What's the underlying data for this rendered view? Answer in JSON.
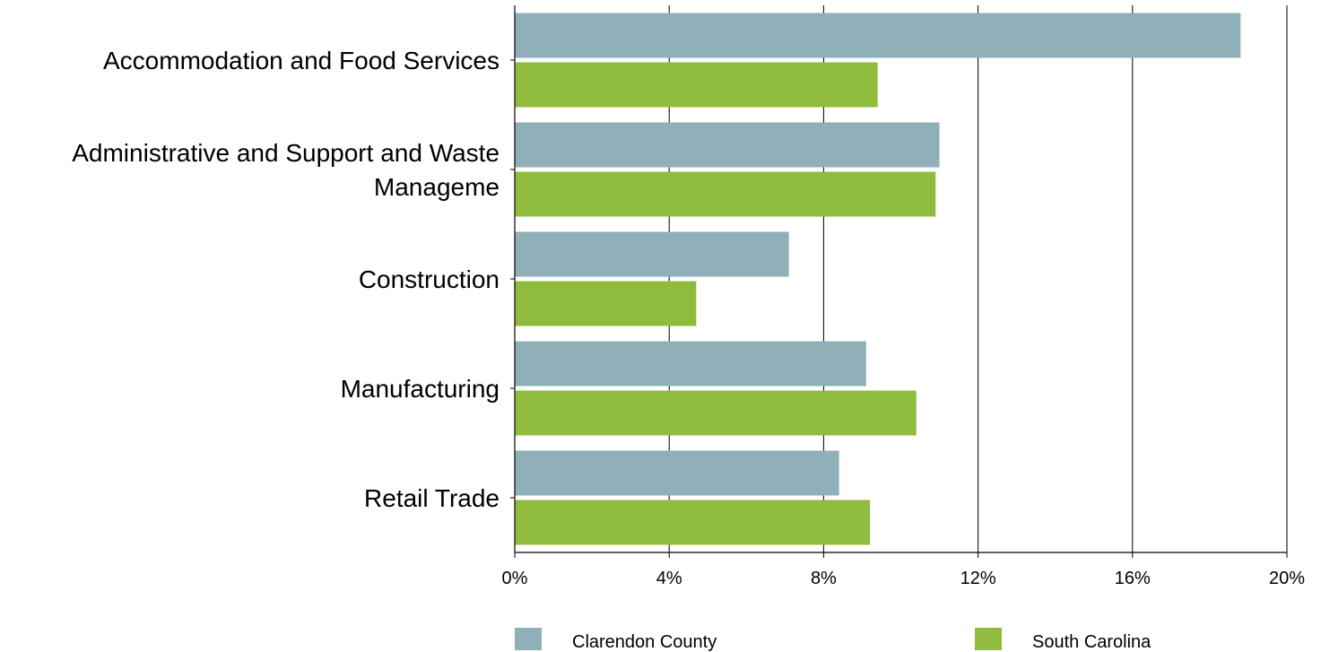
{
  "chart_data": {
    "type": "bar",
    "orientation": "horizontal",
    "categories": [
      [
        "Accommodation and Food Services"
      ],
      [
        "Administrative and Support and Waste",
        "Manageme"
      ],
      [
        "Construction"
      ],
      [
        "Manufacturing"
      ],
      [
        "Retail Trade"
      ]
    ],
    "series": [
      {
        "name": "Clarendon County",
        "color": "#8fafb9",
        "values": [
          18.8,
          11.0,
          7.1,
          9.1,
          8.4
        ]
      },
      {
        "name": "South Carolina",
        "color": "#8fbc3c",
        "values": [
          9.4,
          10.9,
          4.7,
          10.4,
          9.2
        ]
      }
    ],
    "xlim": [
      0,
      20
    ],
    "xticks": [
      0,
      4,
      8,
      12,
      16,
      20
    ],
    "xtick_labels": [
      "0%",
      "4%",
      "8%",
      "12%",
      "16%",
      "20%"
    ],
    "grid": "vertical",
    "legend_position": "bottom"
  }
}
